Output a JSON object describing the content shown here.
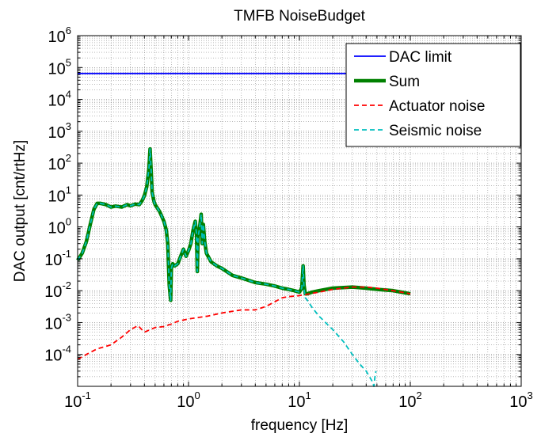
{
  "chart_data": {
    "type": "line",
    "title": "TMFB NoiseBudget",
    "xlabel": "frequency [Hz]",
    "ylabel": "DAC output [cnt/rtHz]",
    "xscale": "log",
    "yscale": "log",
    "xlim": [
      0.1,
      1000
    ],
    "ylim": [
      1e-05,
      1000000
    ],
    "xticks": [
      {
        "base": "10",
        "exp": "-1"
      },
      {
        "base": "10",
        "exp": "0"
      },
      {
        "base": "10",
        "exp": "1"
      },
      {
        "base": "10",
        "exp": "2"
      },
      {
        "base": "10",
        "exp": "3"
      }
    ],
    "yticks": [
      {
        "base": "10",
        "exp": "-4"
      },
      {
        "base": "10",
        "exp": "-3"
      },
      {
        "base": "10",
        "exp": "-2"
      },
      {
        "base": "10",
        "exp": "-1"
      },
      {
        "base": "10",
        "exp": "0"
      },
      {
        "base": "10",
        "exp": "1"
      },
      {
        "base": "10",
        "exp": "2"
      },
      {
        "base": "10",
        "exp": "3"
      },
      {
        "base": "10",
        "exp": "4"
      },
      {
        "base": "10",
        "exp": "5"
      },
      {
        "base": "10",
        "exp": "6"
      }
    ],
    "grid": "major and minor, dotted",
    "legend_position": "top-right",
    "series": [
      {
        "name": "DAC limit",
        "color": "#0000ff",
        "style": "solid",
        "x": [
          0.1,
          100
        ],
        "y": [
          65000,
          65000
        ]
      },
      {
        "name": "Sum",
        "color": "#008000",
        "style": "solid-thick",
        "x": [
          0.1,
          0.11,
          0.12,
          0.13,
          0.14,
          0.15,
          0.16,
          0.18,
          0.2,
          0.22,
          0.25,
          0.28,
          0.3,
          0.33,
          0.36,
          0.38,
          0.4,
          0.42,
          0.44,
          0.45,
          0.46,
          0.47,
          0.49,
          0.5,
          0.55,
          0.6,
          0.63,
          0.65,
          0.67,
          0.69,
          0.7,
          0.72,
          0.75,
          0.8,
          0.85,
          0.9,
          0.95,
          1.0,
          1.05,
          1.1,
          1.15,
          1.18,
          1.2,
          1.22,
          1.25,
          1.3,
          1.33,
          1.36,
          1.4,
          1.45,
          1.5,
          1.6,
          1.8,
          2.0,
          2.5,
          3,
          4,
          5,
          6,
          7,
          8,
          9,
          10,
          10.5,
          10.8,
          11,
          11.3,
          11.8,
          13,
          15,
          20,
          30,
          40,
          50,
          70,
          100
        ],
        "y": [
          0.09,
          0.15,
          0.35,
          1.2,
          3.5,
          5.5,
          5.5,
          5.0,
          4.2,
          4.5,
          4.2,
          5.0,
          4.6,
          5.2,
          5.0,
          6.5,
          9.5,
          18,
          70,
          280,
          60,
          12,
          6,
          5,
          3,
          1.5,
          0.8,
          0.3,
          0.015,
          0.005,
          0.05,
          0.07,
          0.06,
          0.07,
          0.12,
          0.2,
          0.12,
          0.18,
          0.3,
          0.8,
          1.5,
          0.6,
          0.04,
          0.5,
          0.8,
          2.5,
          0.3,
          1.2,
          0.35,
          0.15,
          0.12,
          0.08,
          0.06,
          0.05,
          0.03,
          0.025,
          0.018,
          0.016,
          0.014,
          0.012,
          0.011,
          0.01,
          0.009,
          0.012,
          0.06,
          0.015,
          0.008,
          0.008,
          0.009,
          0.01,
          0.012,
          0.013,
          0.012,
          0.011,
          0.01,
          0.008
        ]
      },
      {
        "name": "Actuator noise",
        "color": "#ff0000",
        "style": "dashed",
        "x": [
          0.1,
          0.12,
          0.15,
          0.2,
          0.25,
          0.3,
          0.35,
          0.4,
          0.5,
          0.6,
          0.7,
          0.8,
          1.0,
          1.5,
          2,
          3,
          4,
          5,
          6,
          7,
          8,
          10,
          15,
          20,
          30,
          40,
          50,
          70,
          100
        ],
        "y": [
          7e-05,
          0.0001,
          0.00015,
          0.0002,
          0.00035,
          0.0006,
          0.0008,
          0.0005,
          0.0007,
          0.00075,
          0.0009,
          0.0011,
          0.0013,
          0.0016,
          0.002,
          0.0025,
          0.0025,
          0.0032,
          0.0045,
          0.006,
          0.0065,
          0.007,
          0.009,
          0.011,
          0.013,
          0.013,
          0.012,
          0.01,
          0.008
        ]
      },
      {
        "name": "Seismic noise",
        "color": "#00bfbf",
        "style": "dashed",
        "x": [
          0.1,
          0.11,
          0.12,
          0.13,
          0.14,
          0.15,
          0.16,
          0.18,
          0.2,
          0.22,
          0.25,
          0.28,
          0.3,
          0.33,
          0.36,
          0.38,
          0.4,
          0.42,
          0.44,
          0.45,
          0.46,
          0.47,
          0.49,
          0.5,
          0.55,
          0.6,
          0.63,
          0.65,
          0.67,
          0.69,
          0.7,
          0.72,
          0.75,
          0.8,
          0.85,
          0.9,
          0.95,
          1.0,
          1.05,
          1.1,
          1.15,
          1.18,
          1.2,
          1.22,
          1.25,
          1.3,
          1.33,
          1.36,
          1.4,
          1.45,
          1.5,
          1.6,
          1.8,
          2.0,
          2.5,
          3,
          4,
          5,
          6,
          7,
          8,
          9,
          10,
          10.5,
          10.8,
          11,
          11.3,
          11.8,
          13,
          15,
          20,
          25,
          30,
          35,
          40,
          45,
          47,
          48,
          49
        ],
        "y": [
          0.09,
          0.15,
          0.35,
          1.2,
          3.5,
          5.5,
          5.5,
          5.0,
          4.2,
          4.5,
          4.2,
          5.0,
          4.6,
          5.2,
          5.0,
          6.5,
          9.5,
          18,
          70,
          280,
          60,
          12,
          6,
          5,
          3,
          1.5,
          0.8,
          0.3,
          0.015,
          0.005,
          0.05,
          0.07,
          0.06,
          0.07,
          0.12,
          0.2,
          0.12,
          0.18,
          0.3,
          0.8,
          1.5,
          0.6,
          0.04,
          0.5,
          0.8,
          2.5,
          0.3,
          1.2,
          0.35,
          0.15,
          0.12,
          0.08,
          0.06,
          0.05,
          0.03,
          0.025,
          0.018,
          0.016,
          0.014,
          0.012,
          0.011,
          0.01,
          0.009,
          0.012,
          0.06,
          0.012,
          0.006,
          0.005,
          0.003,
          0.0016,
          0.0006,
          0.00025,
          0.0001,
          5e-05,
          3e-05,
          1.5e-05,
          1e-05,
          2e-05,
          3e-05
        ]
      }
    ]
  }
}
